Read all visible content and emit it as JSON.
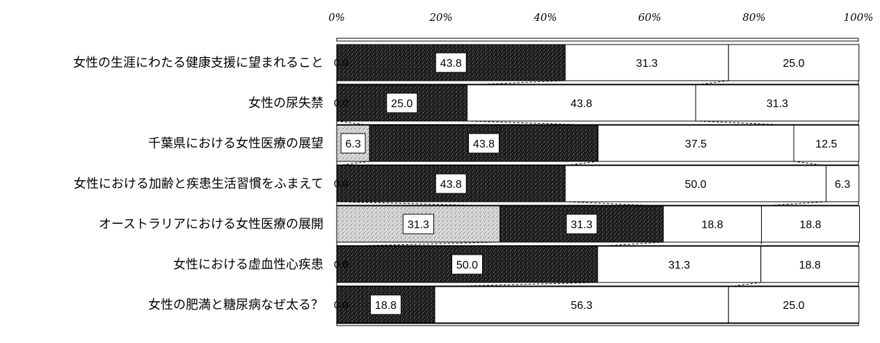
{
  "chart_data": {
    "type": "bar",
    "orientation": "horizontal",
    "stacked": "percent",
    "title": "",
    "xlabel": "",
    "ylabel": "",
    "xlim": [
      0,
      100
    ],
    "x_ticks": [
      "0%",
      "20%",
      "40%",
      "60%",
      "80%",
      "100%"
    ],
    "categories": [
      "女性の生涯にわたる健康支援に望まれること",
      "女性の尿失禁",
      "千葉県における女性医療の展望",
      "女性における加齢と疾患生活習慣をふまえて",
      "オーストラリアにおける女性医療の展開",
      "女性における虚血性心疾患",
      "女性の肥満と糖尿病なぜ太る？"
    ],
    "series": [
      {
        "values": [
          0.0,
          0.0,
          6.3,
          0.0,
          31.3,
          0.0,
          0.0
        ],
        "fill": "light-stipple"
      },
      {
        "values": [
          43.8,
          25.0,
          43.8,
          43.8,
          31.3,
          50.0,
          18.8
        ],
        "fill": "dark-stipple"
      },
      {
        "values": [
          31.3,
          43.8,
          37.5,
          50.0,
          18.8,
          31.3,
          56.3
        ],
        "fill": "white"
      },
      {
        "values": [
          25.0,
          31.3,
          12.5,
          6.3,
          18.8,
          18.8,
          25.0
        ],
        "fill": "white"
      }
    ],
    "grid": false,
    "legend": "none"
  },
  "colors": {
    "light_fill": "#d4d4d4",
    "dark_fill": "#2a2a2a",
    "white_fill": "#ffffff",
    "stroke": "#000000"
  }
}
